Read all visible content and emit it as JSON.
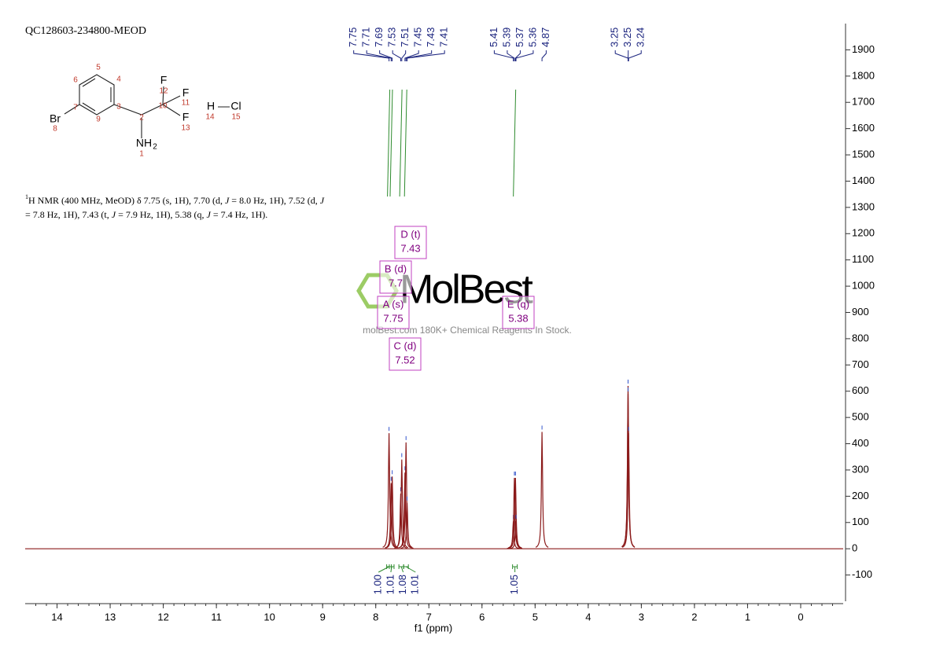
{
  "sample_id": "QC128603-234800-MEOD",
  "nmr_description": [
    [
      {
        "text": "1",
        "style": "sup"
      },
      {
        "text": "H NMR (400 MHz, MeOD) δ 7.75 (s, 1H), 7.70 (d, "
      },
      {
        "text": "J",
        "style": "italic"
      },
      {
        "text": " = 8.0 Hz, 1H), 7.52 (d, "
      },
      {
        "text": "J",
        "style": "italic"
      }
    ],
    [
      {
        "text": "= 7.8 Hz, 1H), 7.43 (t, "
      },
      {
        "text": "J",
        "style": "italic"
      },
      {
        "text": " = 7.9 Hz, 1H), 5.38 (q, "
      },
      {
        "text": "J",
        "style": "italic"
      },
      {
        "text": " = 7.4 Hz, 1H)."
      }
    ]
  ],
  "structure": {
    "atoms": [
      "Br",
      "8",
      "F",
      "12",
      "F",
      "11",
      "F",
      "13",
      "NH",
      "2",
      "1",
      "2",
      "3",
      "4",
      "5",
      "6",
      "7",
      "9",
      "10",
      "H",
      "Cl",
      "14",
      "15"
    ]
  },
  "watermark": {
    "brand": "MolBest",
    "tagline": "molBest.com 180K+ Chemical Reagents In Stock."
  },
  "chart_data": {
    "type": "spectrum",
    "xlabel": "f1 (ppm)",
    "xlim": [
      14.6,
      -0.8
    ],
    "ylim": [
      -200,
      2000
    ],
    "xticks": [
      14,
      13,
      12,
      11,
      10,
      9,
      8,
      7,
      6,
      5,
      4,
      3,
      2,
      1,
      0
    ],
    "yticks": [
      -100,
      0,
      100,
      200,
      300,
      400,
      500,
      600,
      700,
      800,
      900,
      1000,
      1100,
      1200,
      1300,
      1400,
      1500,
      1600,
      1700,
      1800,
      1900
    ],
    "x": [
      7.75,
      7.71,
      7.69,
      7.53,
      7.51,
      7.45,
      7.43,
      7.41,
      5.41,
      5.39,
      5.37,
      5.36,
      4.87,
      3.25,
      3.25,
      3.24
    ],
    "values": [
      440,
      250,
      275,
      210,
      340,
      290,
      405,
      175,
      105,
      270,
      270,
      105,
      445,
      620,
      590,
      440
    ],
    "color": "#8b1a1a",
    "label_color": "#1a237e",
    "multiplets": [
      {
        "label": "A (s)",
        "shift": 7.75,
        "integral": 1,
        "integral_label": "1.00"
      },
      {
        "label": "B (d)",
        "shift": 7.7,
        "integral": 1.01,
        "integral_label": "1.01"
      },
      {
        "label": "C (d)",
        "shift": 7.52,
        "integral": 1.08,
        "integral_label": "1.08"
      },
      {
        "label": "D (t)",
        "shift": 7.43,
        "integral": 1.01,
        "integral_label": "1.01"
      },
      {
        "label": "E (q)",
        "shift": 5.38,
        "integral": 1.05,
        "integral_label": "1.05"
      }
    ]
  }
}
